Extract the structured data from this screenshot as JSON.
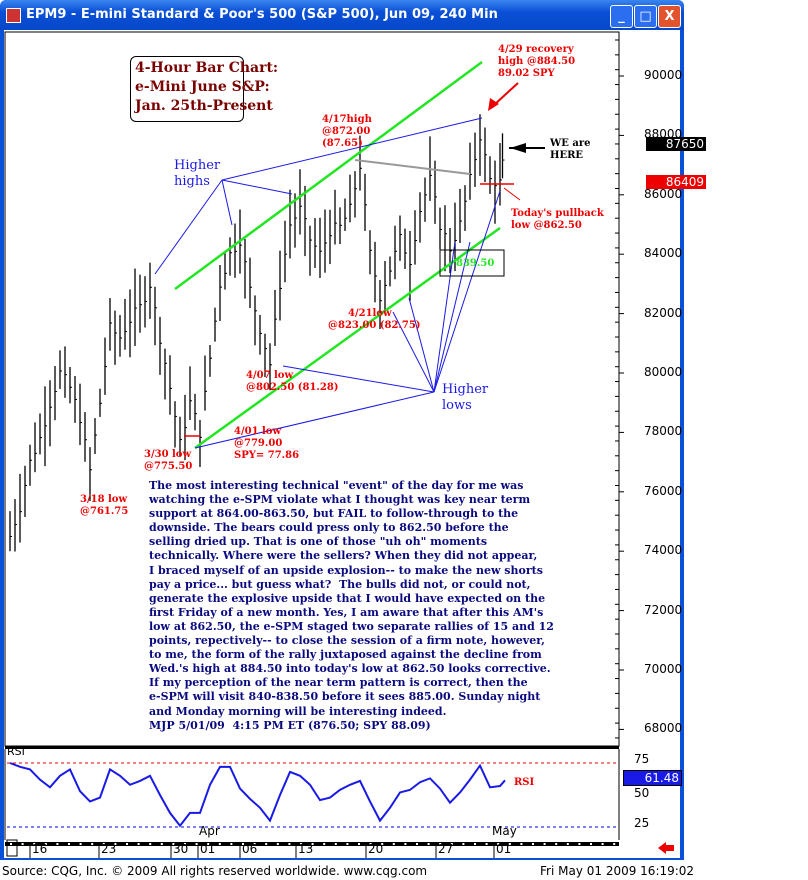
{
  "window": {
    "title": "EPM9 - E-mini Standard & Poor's 500 (S&P 500), Jun 09, 240 Min",
    "minimize": "_",
    "maximize": "□",
    "close": "X"
  },
  "title_box": [
    "4-Hour Bar Chart:",
    "e-Mini June S&P:",
    "Jan. 25th-Present"
  ],
  "annotations": {
    "recovery_high": [
      "4/29 recovery",
      "high @884.50",
      "89.02 SPY"
    ],
    "apr17_high": [
      "4/17high",
      "@872.00",
      "(87.65)"
    ],
    "higher_highs": [
      "Higher",
      "highs"
    ],
    "we_are_here": [
      "WE are",
      "HERE"
    ],
    "pullback": [
      "Today's pullback",
      "low @862.50"
    ],
    "box_839": "839.50",
    "apr21_low": [
      "4/21low",
      "@823.00 (82.75)"
    ],
    "apr07_low": [
      "4/07 low",
      "@802.50 (81.28)"
    ],
    "higher_lows": [
      "Higher",
      "lows"
    ],
    "apr01_low": [
      "4/01 low",
      "@779.00",
      "SPY= 77.86"
    ],
    "mar30_low": [
      "3/30 low",
      "@775.50"
    ],
    "mar18_low": [
      "3/18 low",
      "@761.75"
    ]
  },
  "commentary": "The most interesting technical \"event\" of the day for me was\nwatching the e-SPM violate what I thought was key near term\nsupport at 864.00-863.50, but FAIL to follow-through to the\ndownside. The bears could press only to 862.50 before the\nselling dried up. That is one of those \"uh oh\" moments\ntechnically. Where were the sellers? When they did not appear,\nI braced myself of an upside explosion-- to make the new shorts\npay a price... but guess what?  The bulls did not, or could not,\ngenerate the explosive upside that I would have expected on the\nfirst Friday of a new month. Yes, I am aware that after this AM's\nlow at 862.50, the e-SPM staged two separate rallies of 15 and 12\npoints, repectively-- to close the session of a firm note, however,\nto me, the form of the rally juxtaposed against the decline from\nWed.'s high at 884.50 into today's low at 862.50 looks corrective.\nIf my perception of the near term pattern is correct, then the\ne-SPM will visit 840-838.50 before it sees 885.00. Sunday night\nand Monday morning will be interesting indeed.\nMJP 5/01/09  4:15 PM ET (876.50; SPY 88.09)",
  "chart_data": [
    {
      "type": "bar",
      "title": "EPM9 240 Min",
      "y_ticks": [
        "90000",
        "88000",
        "86000",
        "84000",
        "82000",
        "80000",
        "78000",
        "76000",
        "74000",
        "72000",
        "70000",
        "68000"
      ],
      "ylim": [
        67000,
        91500
      ],
      "last_price_tag": "87650",
      "red_tag": "86409",
      "closes": [
        745,
        755,
        770,
        778,
        790,
        800,
        795,
        785,
        767,
        790,
        815,
        812,
        818,
        822,
        830,
        812,
        795,
        776,
        790,
        780,
        805,
        830,
        840,
        845,
        828,
        815,
        803,
        830,
        850,
        855,
        845,
        840,
        848,
        849,
        855,
        870,
        840,
        826,
        835,
        845,
        838,
        855,
        865,
        850,
        842,
        850,
        865,
        880,
        865,
        864,
        876.5
      ],
      "colors": {
        "bars": "#000000",
        "channel": "#22e622",
        "fans": "#1a1ae6",
        "annotations": "#ee0000",
        "resistance": "#999999"
      }
    },
    {
      "type": "line",
      "label": "RSI",
      "legend": "RSI",
      "y_ticks": [
        "75",
        "50",
        "25"
      ],
      "ylim": [
        20,
        80
      ],
      "last_value_tag": "61.48",
      "values": [
        75,
        72,
        70,
        62,
        56,
        65,
        70,
        53,
        45,
        48,
        70,
        65,
        58,
        61,
        65,
        50,
        36,
        26,
        36,
        36,
        58,
        72,
        72,
        55,
        47,
        40,
        30,
        50,
        68,
        65,
        58,
        46,
        48,
        54,
        58,
        61,
        45,
        30,
        40,
        52,
        54,
        60,
        63,
        55,
        44,
        52,
        62,
        73,
        56,
        57,
        61.48
      ],
      "color": "#1a1ae6",
      "overbought": 75,
      "oversold": 25
    }
  ],
  "x_axis": {
    "days": [
      "16",
      "23",
      "30",
      "01",
      "06",
      "13",
      "20",
      "27",
      "01"
    ],
    "months": [
      "Apr",
      "May"
    ]
  },
  "footer": {
    "source": "Source: CQG, Inc. © 2009 All rights reserved worldwide. www.cqg.com",
    "timestamp": "Fri May 01 2009 16:19:02"
  }
}
